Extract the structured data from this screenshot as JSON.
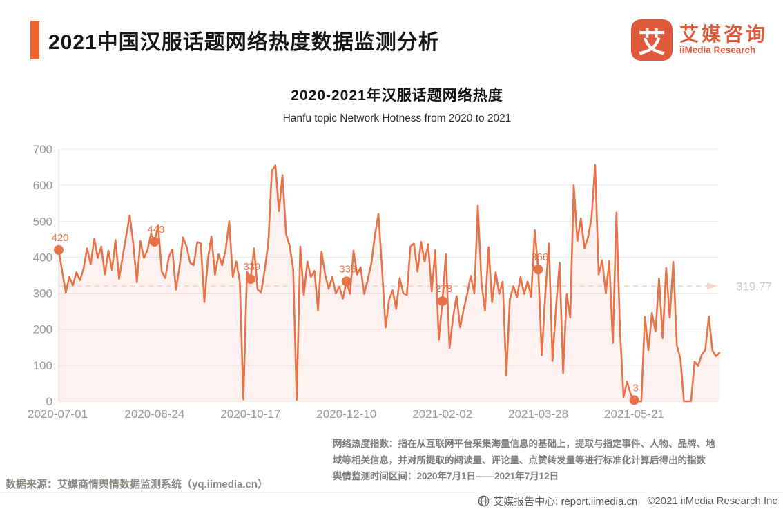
{
  "header": {
    "title": "2021中国汉服话题网络热度数据监测分析",
    "logo": {
      "mark": "艾",
      "name_cn": "艾媒咨询",
      "name_en": "iiMedia Research",
      "brand_color": "#df5a3a"
    }
  },
  "chart_data": {
    "type": "area",
    "title": "2020-2021年汉服话题网络热度",
    "subtitle": "Hanfu topic Network Hotness from 2020 to 2021",
    "ylim": [
      0,
      700
    ],
    "y_ticks": [
      0,
      100,
      200,
      300,
      400,
      500,
      600,
      700
    ],
    "x_tick_labels": [
      "2020-07-01",
      "2020-08-24",
      "2020-10-17",
      "2020-12-10",
      "2021-02-02",
      "2021-03-28",
      "2021-05-21"
    ],
    "x_tick_indices": [
      0,
      27,
      54,
      81,
      108,
      135,
      162
    ],
    "values": [
      420,
      360,
      302,
      345,
      322,
      358,
      336,
      368,
      425,
      380,
      452,
      398,
      430,
      352,
      418,
      365,
      448,
      340,
      402,
      460,
      516,
      438,
      330,
      445,
      398,
      420,
      465,
      443,
      488,
      360,
      342,
      400,
      422,
      310,
      372,
      455,
      430,
      385,
      378,
      442,
      438,
      275,
      395,
      458,
      352,
      408,
      378,
      420,
      500,
      345,
      388,
      330,
      5,
      360,
      339,
      425,
      310,
      302,
      365,
      440,
      640,
      655,
      528,
      628,
      465,
      432,
      368,
      4,
      430,
      295,
      388,
      345,
      362,
      252,
      415,
      352,
      312,
      345,
      300,
      318,
      285,
      333,
      298,
      418,
      352,
      372,
      298,
      338,
      382,
      460,
      520,
      372,
      205,
      282,
      308,
      256,
      342,
      300,
      295,
      430,
      438,
      360,
      443,
      388,
      436,
      305,
      420,
      170,
      278,
      408,
      148,
      232,
      292,
      205,
      255,
      298,
      348,
      300,
      543,
      330,
      252,
      428,
      275,
      358,
      298,
      332,
      72,
      282,
      320,
      288,
      345,
      298,
      332,
      290,
      475,
      366,
      128,
      300,
      438,
      112,
      262,
      385,
      78,
      298,
      232,
      600,
      445,
      508,
      425,
      455,
      510,
      656,
      352,
      392,
      300,
      390,
      162,
      524,
      200,
      12,
      55,
      20,
      3,
      0,
      0,
      235,
      142,
      245,
      194,
      341,
      175,
      370,
      232,
      387,
      155,
      120,
      0,
      0,
      0,
      110,
      98,
      130,
      142,
      236,
      142,
      125,
      135
    ],
    "marker_indices": [
      0,
      27,
      54,
      81,
      108,
      135,
      162
    ],
    "marker_labels": [
      "420",
      "443",
      "339",
      "333",
      "278",
      "366",
      "3"
    ],
    "reference_value": 319.77,
    "reference_label": "319.77",
    "legend": "none",
    "grid": true,
    "line_color": "#e87349",
    "fill_color": "rgba(233,115,73,0.09)",
    "grid_color": "#e9e9e9",
    "axis_color": "#dedede",
    "tick_label_color": "#999999",
    "reference_line_color": "#f2d8cb",
    "reference_label_color": "#c6c6c6"
  },
  "footer": {
    "note_line1": "网络热度指数：指在从互联网平台采集海量信息的基础上，提取与指定事件、人物、品牌、地",
    "note_line2": "域等相关信息，并对所提取的阅读量、评论量、点赞转发量等进行标准化计算后得出的指数",
    "note_line3": "舆情监测时间区间：2020年7月1日——2021年7月12日",
    "datasource": "数据来源：艾媒商情舆情数据监测系统（yq.iimedia.cn）",
    "report_center": "艾媒报告中心: report.iimedia.cn",
    "copyright": "©2021  iiMedia Research Inc"
  }
}
